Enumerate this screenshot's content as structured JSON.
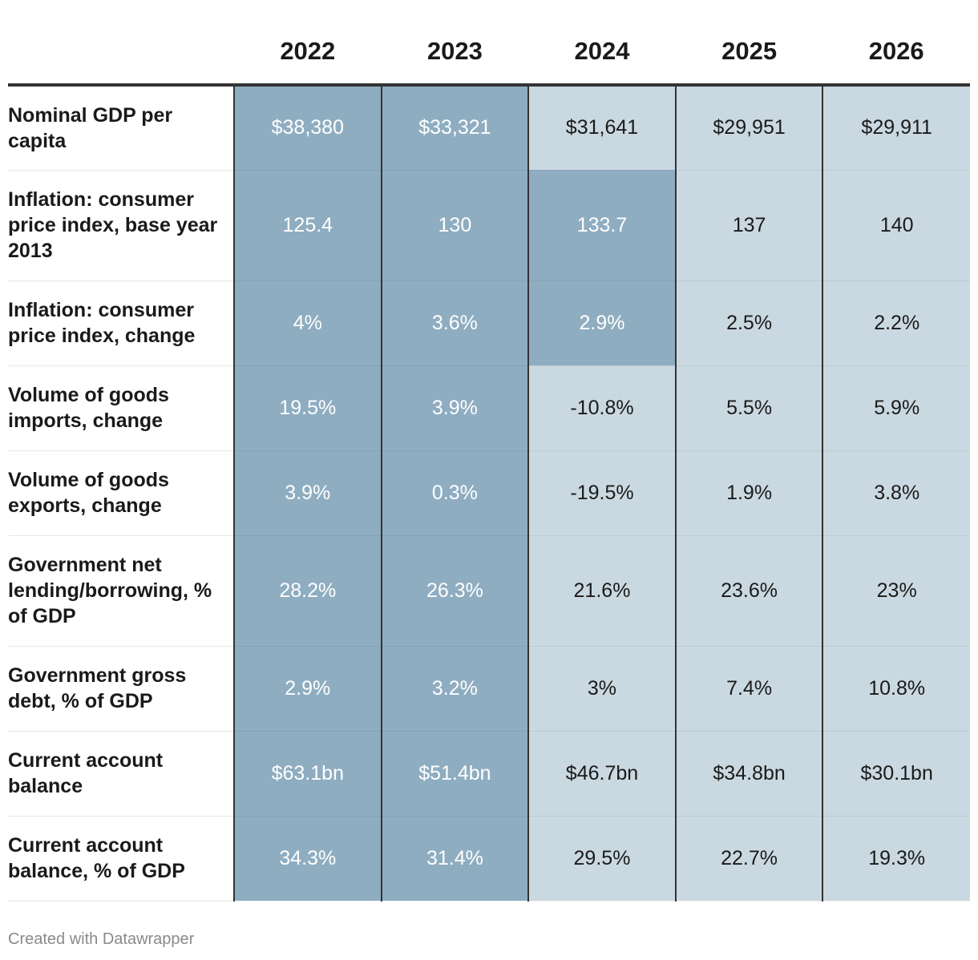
{
  "chart_data": {
    "type": "table",
    "columns": [
      "2022",
      "2023",
      "2024",
      "2025",
      "2026"
    ],
    "rows": [
      {
        "label": "Nominal GDP per capita",
        "values": [
          "$38,380",
          "$33,321",
          "$31,641",
          "$29,951",
          "$29,911"
        ],
        "shades": [
          "dark",
          "dark",
          "light",
          "light",
          "light"
        ]
      },
      {
        "label": "Inflation: consumer price index, base year 2013",
        "values": [
          "125.4",
          "130",
          "133.7",
          "137",
          "140"
        ],
        "shades": [
          "dark",
          "dark",
          "dark",
          "light",
          "light"
        ]
      },
      {
        "label": "Inflation: consumer price index, change",
        "values": [
          "4%",
          "3.6%",
          "2.9%",
          "2.5%",
          "2.2%"
        ],
        "shades": [
          "dark",
          "dark",
          "dark",
          "light",
          "light"
        ]
      },
      {
        "label": "Volume of goods imports, change",
        "values": [
          "19.5%",
          "3.9%",
          "-10.8%",
          "5.5%",
          "5.9%"
        ],
        "shades": [
          "dark",
          "dark",
          "light",
          "light",
          "light"
        ]
      },
      {
        "label": "Volume of goods exports, change",
        "values": [
          "3.9%",
          "0.3%",
          "-19.5%",
          "1.9%",
          "3.8%"
        ],
        "shades": [
          "dark",
          "dark",
          "light",
          "light",
          "light"
        ]
      },
      {
        "label": "Government net lending/borrowing, % of GDP",
        "values": [
          "28.2%",
          "26.3%",
          "21.6%",
          "23.6%",
          "23%"
        ],
        "shades": [
          "dark",
          "dark",
          "light",
          "light",
          "light"
        ]
      },
      {
        "label": "Government gross debt, % of GDP",
        "values": [
          "2.9%",
          "3.2%",
          "3%",
          "7.4%",
          "10.8%"
        ],
        "shades": [
          "dark",
          "dark",
          "light",
          "light",
          "light"
        ]
      },
      {
        "label": "Current account balance",
        "values": [
          "$63.1bn",
          "$51.4bn",
          "$46.7bn",
          "$34.8bn",
          "$30.1bn"
        ],
        "shades": [
          "dark",
          "dark",
          "light",
          "light",
          "light"
        ]
      },
      {
        "label": "Current account balance, % of GDP",
        "values": [
          "34.3%",
          "31.4%",
          "29.5%",
          "22.7%",
          "19.3%"
        ],
        "shades": [
          "dark",
          "dark",
          "light",
          "light",
          "light"
        ]
      }
    ],
    "colors": {
      "dark": "#8fadc1",
      "light": "#cad8e1"
    }
  },
  "footer": {
    "credit": "Created with Datawrapper"
  }
}
